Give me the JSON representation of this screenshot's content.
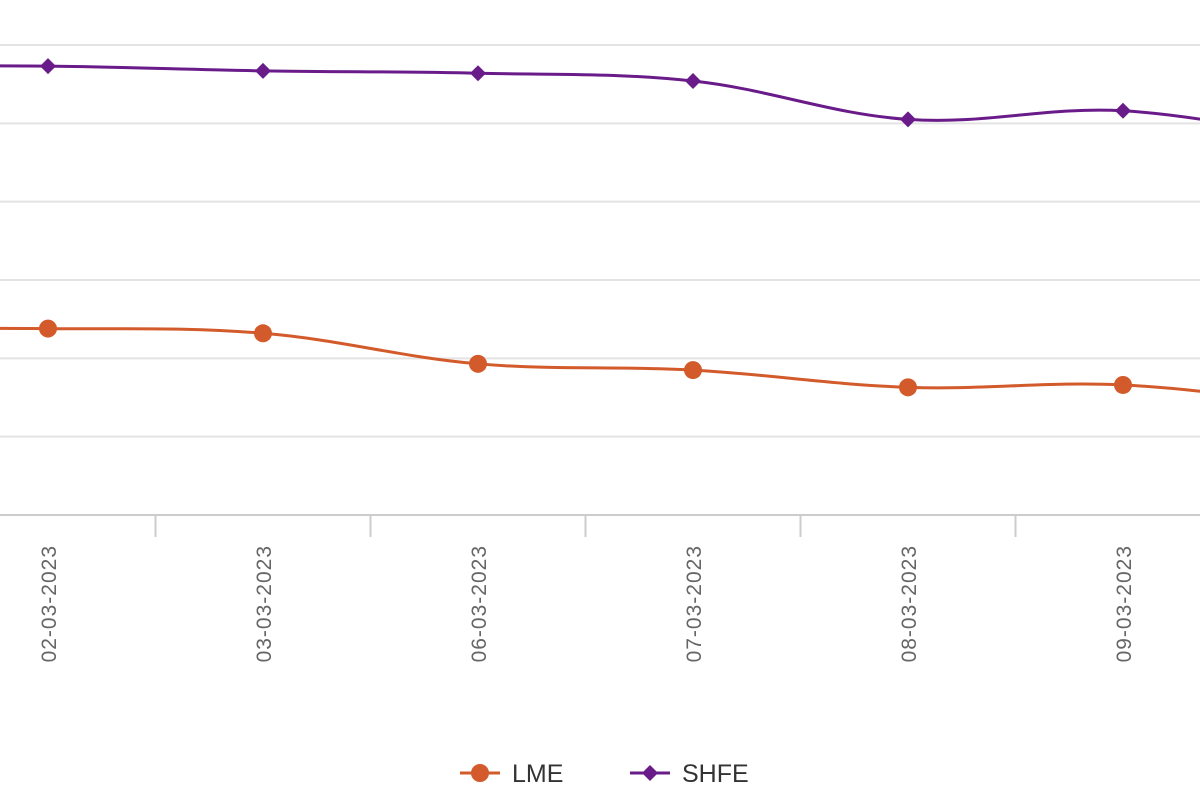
{
  "chart_data": {
    "type": "line",
    "categories": [
      "02-03-2023",
      "03-03-2023",
      "06-03-2023",
      "07-03-2023",
      "08-03-2023",
      "09-03-2023"
    ],
    "series": [
      {
        "name": "LME",
        "color": "#d35a2a",
        "marker": "circle",
        "values": [
          2.38,
          2.32,
          1.93,
          1.85,
          1.63,
          1.66
        ]
      },
      {
        "name": "SHFE",
        "color": "#6a1b8a",
        "marker": "diamond",
        "values": [
          5.73,
          5.67,
          5.64,
          5.54,
          5.05,
          5.16
        ]
      }
    ],
    "grid": true,
    "legend_position": "bottom-center",
    "title": "",
    "xlabel": "",
    "ylabel": ""
  }
}
